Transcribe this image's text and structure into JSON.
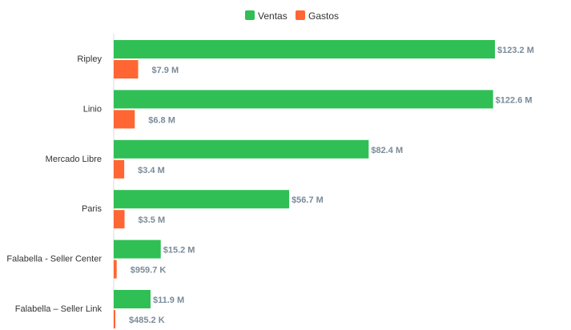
{
  "chart_data": {
    "type": "bar",
    "orientation": "horizontal",
    "title": "",
    "legend_position": "top",
    "categories": [
      "Ripley",
      "Linio",
      "Mercado Libre",
      "Paris",
      "Falabella - Seller Center",
      "Falabella – Seller Link"
    ],
    "series": [
      {
        "name": "Ventas",
        "color": "#2fbf55",
        "values": [
          123.2,
          122.6,
          82.4,
          56.7,
          15.2,
          11.9
        ],
        "labels": [
          "$123.2 M",
          "$122.6 M",
          "$82.4 M",
          "$56.7 M",
          "$15.2 M",
          "$11.9 M"
        ]
      },
      {
        "name": "Gastos",
        "color": "#ff6633",
        "values": [
          7.9,
          6.8,
          3.4,
          3.5,
          0.9597,
          0.4852
        ],
        "labels": [
          "$7.9 M",
          "$6.8 M",
          "$3.4 M",
          "$3.5 M",
          "$959.7 K",
          "$485.2 K"
        ]
      }
    ],
    "unit": "M",
    "xlim": [
      0,
      123.2
    ],
    "grid": false
  }
}
